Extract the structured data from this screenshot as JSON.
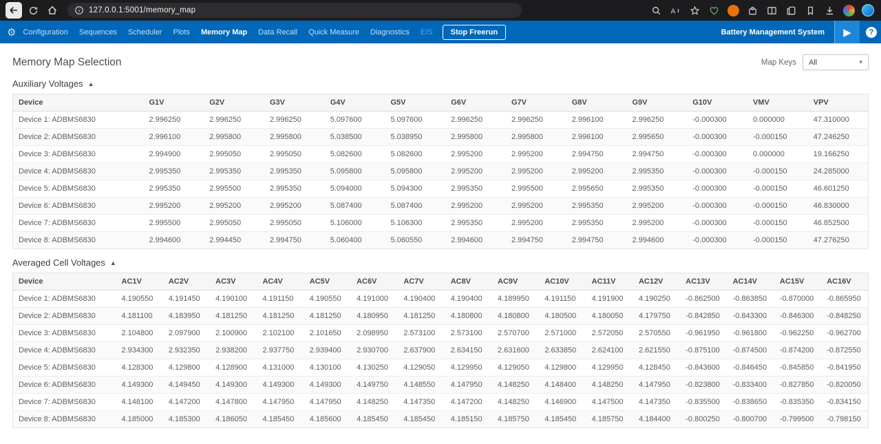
{
  "colors": {
    "accent_blue": "#0067b9",
    "play_square_blue": "#1e86d8"
  },
  "browser": {
    "url": "127.0.0.1:5001/memory_map"
  },
  "navbar": {
    "items": [
      "Configuration",
      "Sequences",
      "Scheduler",
      "Plots",
      "Memory Map",
      "Data Recall",
      "Quick Measure",
      "Diagnostics",
      "EIS"
    ],
    "active_item": "Memory Map",
    "disabled_item": "EIS",
    "stop_button_label": "Stop Freerun",
    "system_label": "Battery Management System"
  },
  "page": {
    "title": "Memory Map Selection",
    "map_keys_label": "Map Keys",
    "map_keys_value": "All"
  },
  "aux_table": {
    "title": "Auxiliary Voltages",
    "headers": [
      "Device",
      "G1V",
      "G2V",
      "G3V",
      "G4V",
      "G5V",
      "G6V",
      "G7V",
      "G8V",
      "G9V",
      "G10V",
      "VMV",
      "VPV"
    ],
    "rows": [
      {
        "device": "Device 1: ADBMS6830",
        "values": [
          "2.996250",
          "2.996250",
          "2.996250",
          "5.097600",
          "5.097600",
          "2.996250",
          "2.996250",
          "2.996100",
          "2.996250",
          "-0.000300",
          "0.000000",
          "47.310000"
        ]
      },
      {
        "device": "Device 2: ADBMS6830",
        "values": [
          "2.996100",
          "2.995800",
          "2.995800",
          "5.038500",
          "5.038950",
          "2.995800",
          "2.995800",
          "2.996100",
          "2.995650",
          "-0.000300",
          "-0.000150",
          "47.246250"
        ]
      },
      {
        "device": "Device 3: ADBMS6830",
        "values": [
          "2.994900",
          "2.995050",
          "2.995050",
          "5.082600",
          "5.082600",
          "2.995200",
          "2.995200",
          "2.994750",
          "2.994750",
          "-0.000300",
          "0.000000",
          "19.166250"
        ]
      },
      {
        "device": "Device 4: ADBMS6830",
        "values": [
          "2.995350",
          "2.995350",
          "2.995350",
          "5.095800",
          "5.095800",
          "2.995200",
          "2.995200",
          "2.995200",
          "2.995350",
          "-0.000300",
          "-0.000150",
          "24.285000"
        ]
      },
      {
        "device": "Device 5: ADBMS6830",
        "values": [
          "2.995350",
          "2.995500",
          "2.995350",
          "5.094000",
          "5.094300",
          "2.995350",
          "2.995500",
          "2.995650",
          "2.995350",
          "-0.000300",
          "-0.000150",
          "46.601250"
        ]
      },
      {
        "device": "Device 6: ADBMS6830",
        "values": [
          "2.995200",
          "2.995200",
          "2.995200",
          "5.087400",
          "5.087400",
          "2.995200",
          "2.995200",
          "2.995350",
          "2.995200",
          "-0.000300",
          "-0.000150",
          "46.830000"
        ]
      },
      {
        "device": "Device 7: ADBMS6830",
        "values": [
          "2.995500",
          "2.995050",
          "2.995050",
          "5.106000",
          "5.106300",
          "2.995350",
          "2.995200",
          "2.995350",
          "2.995200",
          "-0.000300",
          "-0.000150",
          "46.852500"
        ]
      },
      {
        "device": "Device 8: ADBMS6830",
        "values": [
          "2.994600",
          "2.994450",
          "2.994750",
          "5.060400",
          "5.060550",
          "2.994600",
          "2.994750",
          "2.994750",
          "2.994600",
          "-0.000300",
          "-0.000150",
          "47.276250"
        ]
      }
    ]
  },
  "acv_table": {
    "title": "Averaged Cell Voltages",
    "headers": [
      "Device",
      "AC1V",
      "AC2V",
      "AC3V",
      "AC4V",
      "AC5V",
      "AC6V",
      "AC7V",
      "AC8V",
      "AC9V",
      "AC10V",
      "AC11V",
      "AC12V",
      "AC13V",
      "AC14V",
      "AC15V",
      "AC16V"
    ],
    "rows": [
      {
        "device": "Device 1: ADBMS6830",
        "values": [
          "4.190550",
          "4.191450",
          "4.190100",
          "4.191150",
          "4.190550",
          "4.191000",
          "4.190400",
          "4.190400",
          "4.189950",
          "4.191150",
          "4.191900",
          "4.190250",
          "-0.862500",
          "-0.863850",
          "-0.870000",
          "-0.865950"
        ]
      },
      {
        "device": "Device 2: ADBMS6830",
        "values": [
          "4.181100",
          "4.183950",
          "4.181250",
          "4.181250",
          "4.181250",
          "4.180950",
          "4.181250",
          "4.180800",
          "4.180800",
          "4.180500",
          "4.180050",
          "4.179750",
          "-0.842850",
          "-0.843300",
          "-0.846300",
          "-0.848250"
        ]
      },
      {
        "device": "Device 3: ADBMS6830",
        "values": [
          "2.104800",
          "2.097900",
          "2.100900",
          "2.102100",
          "2.101650",
          "2.098950",
          "2.573100",
          "2.573100",
          "2.570700",
          "2.571000",
          "2.572050",
          "2.570550",
          "-0.961950",
          "-0.961800",
          "-0.962250",
          "-0.962700"
        ]
      },
      {
        "device": "Device 4: ADBMS6830",
        "values": [
          "2.934300",
          "2.932350",
          "2.938200",
          "2.937750",
          "2.939400",
          "2.930700",
          "2.637900",
          "2.634150",
          "2.631600",
          "2.633850",
          "2.624100",
          "2.621550",
          "-0.875100",
          "-0.874500",
          "-0.874200",
          "-0.872550"
        ]
      },
      {
        "device": "Device 5: ADBMS6830",
        "values": [
          "4.128300",
          "4.129800",
          "4.128900",
          "4.131000",
          "4.130100",
          "4.130250",
          "4.129050",
          "4.129950",
          "4.129050",
          "4.129800",
          "4.129950",
          "4.128450",
          "-0.843600",
          "-0.846450",
          "-0.845850",
          "-0.841950"
        ]
      },
      {
        "device": "Device 6: ADBMS6830",
        "values": [
          "4.149300",
          "4.149450",
          "4.149300",
          "4.149300",
          "4.149300",
          "4.149750",
          "4.148550",
          "4.147950",
          "4.148250",
          "4.148400",
          "4.148250",
          "4.147950",
          "-0.823800",
          "-0.833400",
          "-0.827850",
          "-0.820050"
        ]
      },
      {
        "device": "Device 7: ADBMS6830",
        "values": [
          "4.148100",
          "4.147200",
          "4.147800",
          "4.147950",
          "4.147950",
          "4.148250",
          "4.147350",
          "4.147200",
          "4.148250",
          "4.146900",
          "4.147500",
          "4.147350",
          "-0.835500",
          "-0.838650",
          "-0.835350",
          "-0.834150"
        ]
      },
      {
        "device": "Device 8: ADBMS6830",
        "values": [
          "4.185000",
          "4.185300",
          "4.186050",
          "4.185450",
          "4.185600",
          "4.185450",
          "4.185450",
          "4.185150",
          "4.185750",
          "4.185450",
          "4.185750",
          "4.184400",
          "-0.800250",
          "-0.800700",
          "-0.799500",
          "-0.798150"
        ]
      }
    ]
  }
}
